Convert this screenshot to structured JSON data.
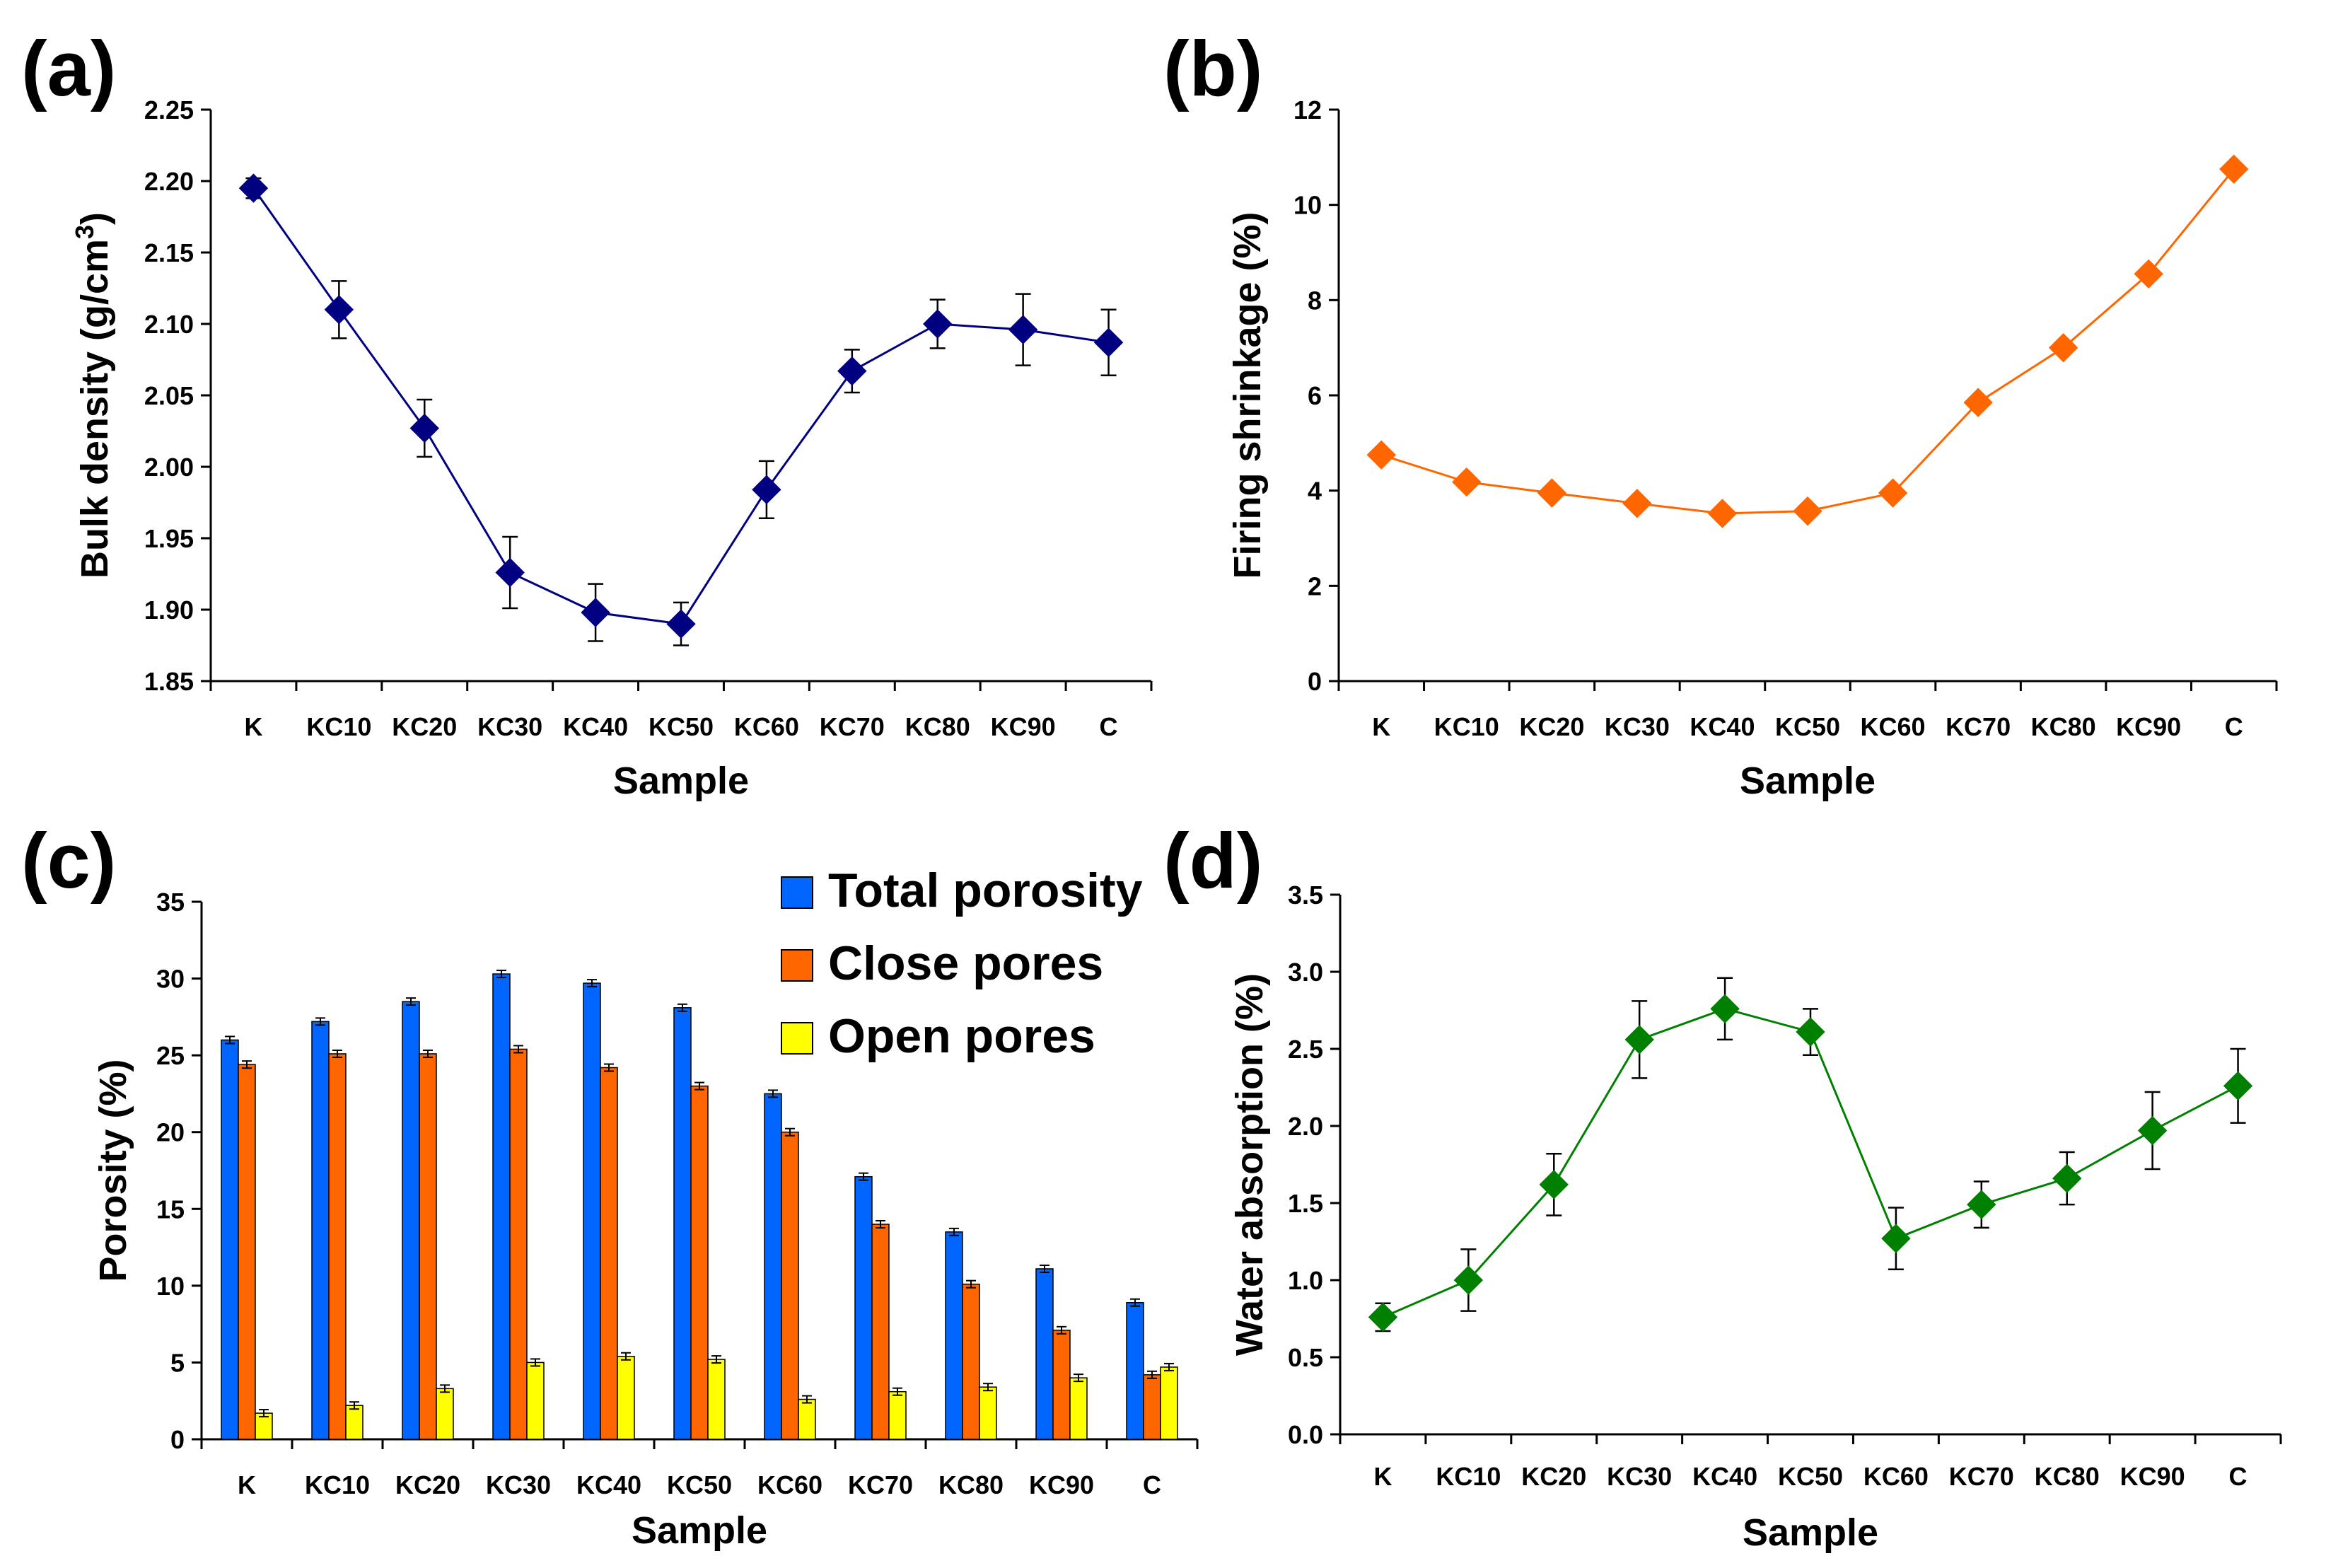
{
  "figure": {
    "colors": {
      "axis": "#000000",
      "bulk_density": "#000080",
      "firing_shrinkage": "#FF6600",
      "water_absorption": "#008000",
      "total_porosity": "#0066FF",
      "close_pores": "#FF6600",
      "open_pores": "#FFFF00"
    }
  },
  "chart_data": [
    {
      "id": "a",
      "panel_label": "(a)",
      "type": "line",
      "categories": [
        "K",
        "KC10",
        "KC20",
        "KC30",
        "KC40",
        "KC50",
        "KC60",
        "KC70",
        "KC80",
        "KC90",
        "C"
      ],
      "series": [
        {
          "name": "Bulk density",
          "values": [
            2.195,
            2.11,
            2.027,
            1.926,
            1.898,
            1.89,
            1.984,
            2.067,
            2.1,
            2.096,
            2.087
          ],
          "errors": [
            0.007,
            0.02,
            0.02,
            0.025,
            0.02,
            0.015,
            0.02,
            0.015,
            0.017,
            0.025,
            0.023
          ],
          "color": "#000080",
          "marker": "diamond"
        }
      ],
      "xlabel": "Sample",
      "ylabel": "Bulk density (g/cm",
      "ylabel_sup": "3",
      "ylabel_end": ")",
      "ylim": [
        1.85,
        2.25
      ],
      "yticks": [
        "1.85",
        "1.90",
        "1.95",
        "2.00",
        "2.05",
        "2.10",
        "2.15",
        "2.20",
        "2.25"
      ],
      "grid": false
    },
    {
      "id": "b",
      "panel_label": "(b)",
      "type": "line",
      "categories": [
        "K",
        "KC10",
        "KC20",
        "KC30",
        "KC40",
        "KC50",
        "KC60",
        "KC70",
        "KC80",
        "KC90",
        "C"
      ],
      "series": [
        {
          "name": "Firing shrinkage",
          "values": [
            4.75,
            4.18,
            3.95,
            3.73,
            3.52,
            3.57,
            3.95,
            5.85,
            7.0,
            8.55,
            10.75
          ],
          "color": "#FF6600",
          "marker": "diamond"
        }
      ],
      "xlabel": "Sample",
      "ylabel": "Firing shrinkage (%)",
      "ylim": [
        0,
        12
      ],
      "yticks": [
        "0",
        "2",
        "4",
        "6",
        "8",
        "10",
        "12"
      ],
      "grid": false
    },
    {
      "id": "c",
      "panel_label": "(c)",
      "type": "bar",
      "categories": [
        "K",
        "KC10",
        "KC20",
        "KC30",
        "KC40",
        "KC50",
        "KC60",
        "KC70",
        "KC80",
        "KC90",
        "C"
      ],
      "series": [
        {
          "name": "Total porosity",
          "values": [
            26.0,
            27.2,
            28.5,
            30.3,
            29.7,
            28.1,
            22.5,
            17.1,
            13.5,
            11.1,
            8.9
          ],
          "color": "#0066FF"
        },
        {
          "name": "Close pores",
          "values": [
            24.4,
            25.1,
            25.1,
            25.4,
            24.2,
            23.0,
            20.0,
            14.0,
            10.1,
            7.1,
            4.2
          ],
          "color": "#FF6600"
        },
        {
          "name": "Open pores",
          "values": [
            1.7,
            2.2,
            3.3,
            5.0,
            5.4,
            5.2,
            2.6,
            3.1,
            3.4,
            4.0,
            4.7
          ],
          "color": "#FFFF00"
        }
      ],
      "xlabel": "Sample",
      "ylabel": "Porosity (%)",
      "ylim": [
        0,
        35
      ],
      "yticks": [
        "0",
        "5",
        "10",
        "15",
        "20",
        "25",
        "30",
        "35"
      ],
      "legend": "top-right",
      "grid": false
    },
    {
      "id": "d",
      "panel_label": "(d)",
      "type": "line",
      "categories": [
        "K",
        "KC10",
        "KC20",
        "KC30",
        "KC40",
        "KC50",
        "KC60",
        "KC70",
        "KC80",
        "KC90",
        "C"
      ],
      "series": [
        {
          "name": "Water absorption",
          "values": [
            0.76,
            1.0,
            1.62,
            2.56,
            2.76,
            2.61,
            1.27,
            1.49,
            1.66,
            1.97,
            2.26
          ],
          "errors": [
            0.09,
            0.2,
            0.2,
            0.25,
            0.2,
            0.15,
            0.2,
            0.15,
            0.17,
            0.25,
            0.24
          ],
          "color": "#008000",
          "marker": "diamond"
        }
      ],
      "xlabel": "Sample",
      "ylabel": "Water absorption (%)",
      "ylim": [
        0,
        3.5
      ],
      "yticks": [
        "0.0",
        "0.5",
        "1.0",
        "1.5",
        "2.0",
        "2.5",
        "3.0",
        "3.5"
      ],
      "grid": false
    }
  ]
}
